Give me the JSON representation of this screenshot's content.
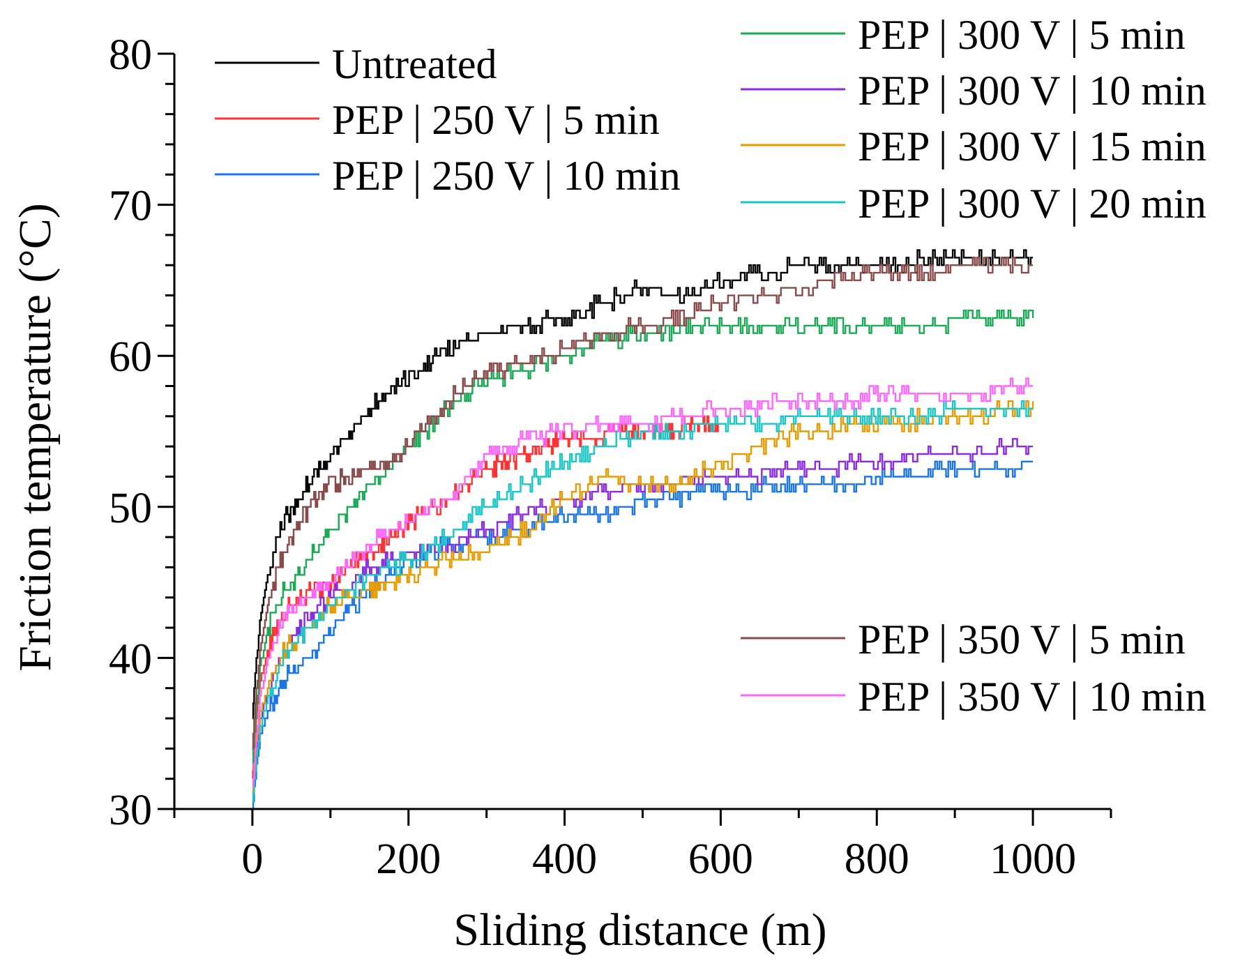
{
  "chart_data": {
    "type": "line",
    "title": "",
    "xlabel": "Sliding distance (m)",
    "ylabel": "Friction temperature (°C)",
    "xlim": [
      -100,
      1100
    ],
    "ylim": [
      30,
      80
    ],
    "x_ticks": [
      0,
      200,
      400,
      600,
      800,
      1000
    ],
    "y_ticks": [
      30,
      40,
      50,
      60,
      70,
      80
    ],
    "grid": false,
    "legend_position": "top-left and top-right / right",
    "series": [
      {
        "name": "Untreated",
        "color": "#000000",
        "x": [
          0,
          5,
          10,
          20,
          30,
          40,
          50,
          60,
          80,
          100,
          125,
          150,
          175,
          200,
          250,
          300,
          350,
          400,
          450,
          500,
          550,
          600,
          650,
          700,
          800,
          900,
          1000
        ],
        "y": [
          36,
          40,
          42.5,
          45.5,
          47.5,
          49,
          50,
          50.7,
          52,
          53.5,
          55,
          56.5,
          57.5,
          58.8,
          60.5,
          61.5,
          62,
          62.5,
          63.5,
          64.5,
          64,
          65,
          65.5,
          66,
          66,
          66.5,
          66.5
        ]
      },
      {
        "name": "PEP | 250 V | 5 min",
        "color": "#ff3333",
        "x": [
          0,
          5,
          10,
          20,
          30,
          40,
          60,
          80,
          100,
          150,
          200,
          250,
          300,
          350,
          400,
          500,
          600
        ],
        "y": [
          32,
          36,
          38.5,
          40.5,
          42,
          43,
          44,
          44.5,
          45,
          47,
          49,
          50.5,
          52.5,
          53.5,
          54.5,
          55,
          55.5
        ]
      },
      {
        "name": "PEP | 250 V | 10 min",
        "color": "#1a75e6",
        "x": [
          0,
          5,
          10,
          20,
          30,
          40,
          60,
          80,
          100,
          150,
          200,
          250,
          300,
          350,
          400,
          450,
          500,
          600,
          700,
          800,
          900,
          1000
        ],
        "y": [
          30,
          33,
          35,
          36.5,
          37.5,
          38.5,
          39.5,
          40.5,
          42,
          44.5,
          46.5,
          47.5,
          48,
          48.5,
          49.5,
          49.5,
          50.5,
          51,
          51.5,
          51.8,
          52.5,
          52.8
        ]
      },
      {
        "name": "PEP | 300 V | 5 min",
        "color": "#1aaa55",
        "x": [
          0,
          5,
          10,
          20,
          30,
          40,
          60,
          80,
          100,
          125,
          150,
          175,
          200,
          250,
          300,
          350,
          400,
          450,
          500,
          600,
          700,
          800,
          900,
          1000
        ],
        "y": [
          33,
          37,
          39.5,
          42,
          43.5,
          44.5,
          45.5,
          47,
          48.5,
          50,
          51.5,
          52.5,
          54,
          56.5,
          58.5,
          59,
          60,
          61,
          61.5,
          62,
          62.2,
          61.8,
          62.3,
          62.5
        ]
      },
      {
        "name": "PEP | 300 V | 10 min",
        "color": "#8a2be2",
        "x": [
          0,
          5,
          10,
          20,
          30,
          40,
          60,
          80,
          100,
          150,
          200,
          250,
          300,
          350,
          400,
          450,
          500,
          600,
          700,
          800,
          900,
          1000
        ],
        "y": [
          31,
          34,
          36,
          38,
          39.5,
          40.5,
          42,
          43,
          44,
          46,
          47,
          47.5,
          48.5,
          49.5,
          50.5,
          51,
          51.5,
          52,
          52.5,
          53,
          53.5,
          54
        ]
      },
      {
        "name": "PEP | 300 V | 15 min",
        "color": "#e69b00",
        "x": [
          0,
          5,
          10,
          20,
          30,
          40,
          60,
          80,
          100,
          150,
          200,
          250,
          300,
          350,
          400,
          450,
          500,
          550,
          600,
          650,
          700,
          800,
          900,
          1000
        ],
        "y": [
          31,
          34.5,
          36.5,
          38,
          39.5,
          40.5,
          41.5,
          42.5,
          43.5,
          44.5,
          45.5,
          46.5,
          47,
          48.5,
          50.5,
          52,
          51.5,
          51.5,
          53,
          54,
          55,
          55.5,
          56,
          56.5
        ]
      },
      {
        "name": "PEP | 300 V | 20 min",
        "color": "#1ac6c6",
        "x": [
          0,
          5,
          10,
          20,
          30,
          40,
          60,
          80,
          100,
          150,
          200,
          250,
          300,
          350,
          400,
          450,
          500,
          600,
          700,
          800,
          900,
          1000
        ],
        "y": [
          30.5,
          33.5,
          35.5,
          37.5,
          39,
          40,
          41.5,
          42.5,
          43.5,
          45.5,
          46.5,
          48,
          50,
          51.5,
          53,
          54,
          54.8,
          55.5,
          55.8,
          56,
          56.3,
          56.5
        ]
      },
      {
        "name": "PEP | 350 V | 5 min",
        "color": "#8b4a4a",
        "x": [
          0,
          5,
          10,
          20,
          30,
          40,
          50,
          60,
          80,
          100,
          125,
          150,
          175,
          200,
          250,
          300,
          350,
          400,
          450,
          500,
          550,
          600,
          650,
          700,
          750,
          800,
          900,
          1000
        ],
        "y": [
          34,
          38,
          40.5,
          43.5,
          45.5,
          47,
          48,
          49,
          50.5,
          51.5,
          52,
          52.5,
          53,
          54,
          57,
          59,
          59.5,
          60.5,
          61.5,
          62,
          62.5,
          63.5,
          64,
          64.5,
          65,
          65.5,
          65.8,
          66
        ]
      },
      {
        "name": "PEP | 350 V | 10 min",
        "color": "#ff66ff",
        "x": [
          0,
          5,
          10,
          20,
          30,
          40,
          60,
          80,
          100,
          150,
          200,
          250,
          300,
          350,
          400,
          450,
          500,
          600,
          700,
          800,
          900,
          1000
        ],
        "y": [
          31.5,
          35,
          37.5,
          40,
          41.5,
          42.5,
          43.5,
          44.5,
          45,
          47.5,
          49,
          50.5,
          53.5,
          54.5,
          55,
          55.5,
          55.5,
          56.5,
          57,
          57.3,
          57.5,
          58
        ]
      }
    ]
  }
}
